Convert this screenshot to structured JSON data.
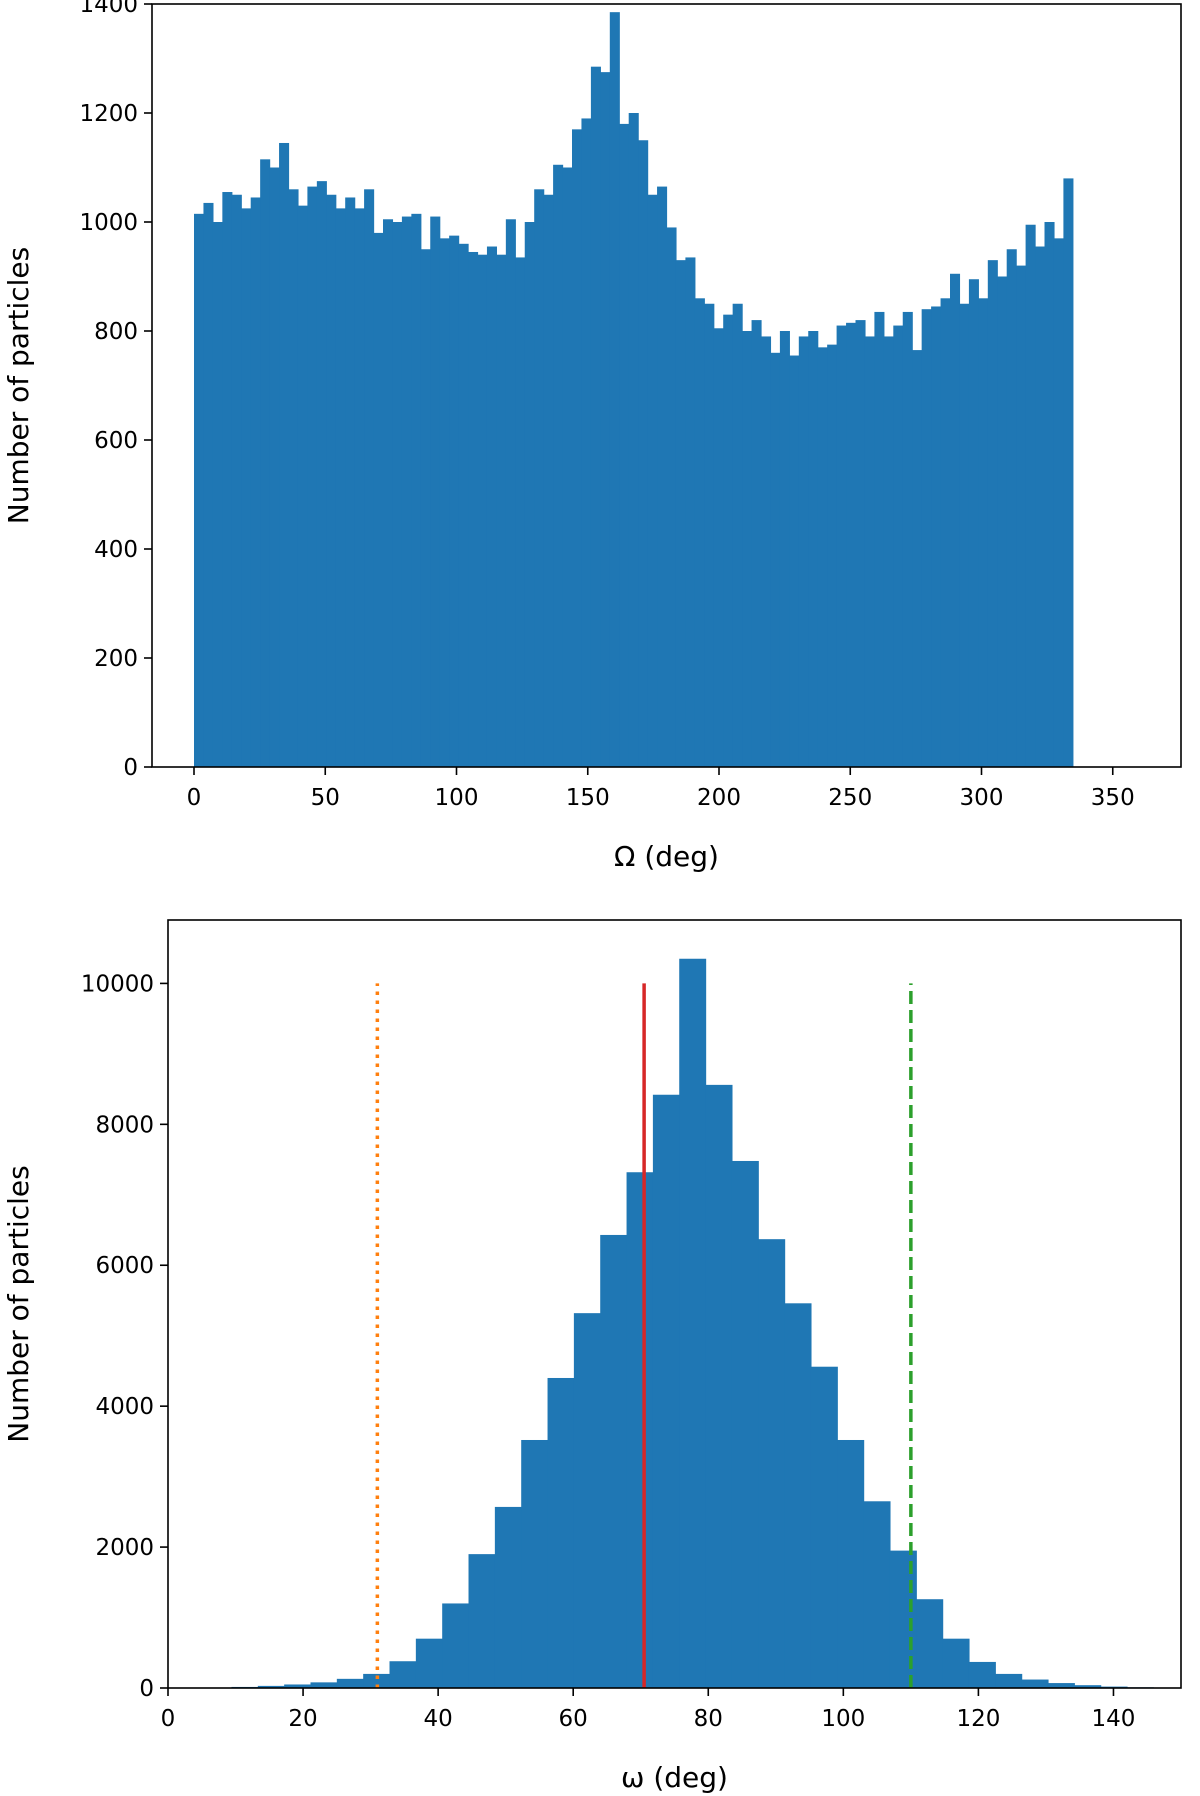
{
  "chart_data": [
    {
      "type": "bar",
      "xlabel": "Ω (deg)",
      "ylabel": "Number of particles",
      "xlim": [
        -16,
        376
      ],
      "ylim": [
        0,
        1400
      ],
      "xticks": [
        "0",
        "50",
        "100",
        "150",
        "200",
        "250",
        "300",
        "350"
      ],
      "yticks": [
        "0",
        "200",
        "400",
        "600",
        "800",
        "1000",
        "1200",
        "1400"
      ],
      "grid": false,
      "bar_color": "#1f77b4",
      "bin_start": 0,
      "bin_width": 3.6,
      "values": [
        1015,
        1035,
        1000,
        1055,
        1050,
        1025,
        1045,
        1115,
        1100,
        1145,
        1060,
        1030,
        1065,
        1075,
        1050,
        1025,
        1045,
        1025,
        1060,
        980,
        1005,
        1000,
        1010,
        1015,
        950,
        1010,
        970,
        975,
        960,
        945,
        940,
        955,
        940,
        1005,
        935,
        1000,
        1060,
        1050,
        1105,
        1100,
        1170,
        1190,
        1285,
        1275,
        1385,
        1180,
        1200,
        1150,
        1050,
        1065,
        990,
        930,
        935,
        860,
        850,
        805,
        830,
        850,
        800,
        820,
        790,
        760,
        800,
        755,
        790,
        800,
        770,
        775,
        810,
        815,
        820,
        790,
        835,
        790,
        810,
        835,
        765,
        840,
        845,
        860,
        905,
        850,
        895,
        860,
        930,
        900,
        950,
        920,
        995,
        955,
        1000,
        970,
        1080
      ]
    },
    {
      "type": "bar",
      "xlabel": "ω (deg)",
      "ylabel": "Number of particles",
      "xlim": [
        0,
        150
      ],
      "ylim": [
        0,
        10900
      ],
      "xticks": [
        "0",
        "20",
        "40",
        "60",
        "80",
        "100",
        "120",
        "140"
      ],
      "yticks": [
        "0",
        "2000",
        "4000",
        "6000",
        "8000",
        "10000"
      ],
      "grid": false,
      "bar_color": "#1f77b4",
      "bin_start": 5.5,
      "bin_width": 3.9,
      "values": [
        5,
        15,
        30,
        50,
        80,
        130,
        200,
        380,
        700,
        1200,
        1900,
        2570,
        3520,
        4400,
        5320,
        6430,
        7320,
        8420,
        10350,
        8560,
        7480,
        6370,
        5460,
        4560,
        3520,
        2650,
        1950,
        1260,
        700,
        370,
        200,
        120,
        70,
        40,
        20,
        10
      ],
      "vlines": [
        {
          "x": 31,
          "y_top": 10000,
          "color": "#ff7f0e",
          "style": "dotted"
        },
        {
          "x": 70.5,
          "y_top": 10000,
          "color": "#d62728",
          "style": "solid"
        },
        {
          "x": 110,
          "y_top": 10000,
          "color": "#2ca02c",
          "style": "dashed"
        }
      ]
    }
  ]
}
